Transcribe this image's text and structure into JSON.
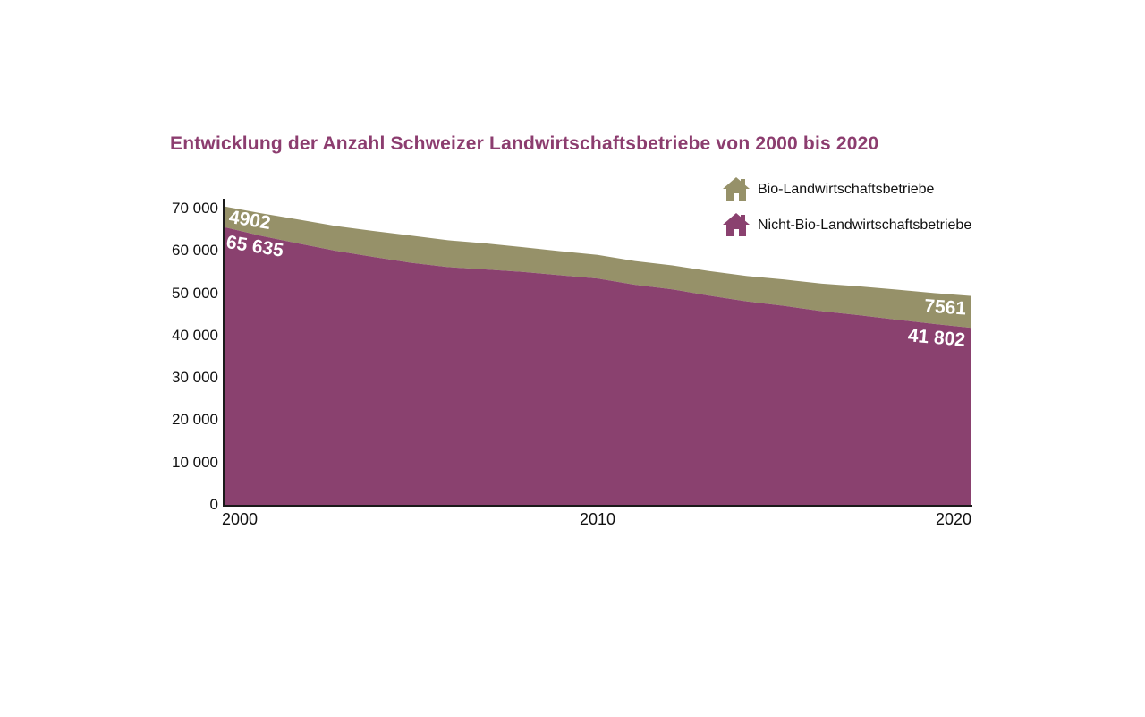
{
  "title": {
    "text": "Entwicklung der Anzahl Schweizer Landwirtschaftsbetriebe von 2000 bis 2020",
    "color": "#8C3D6F"
  },
  "legend": {
    "position": "top-right",
    "items": [
      {
        "label": "Bio-Landwirtschaftsbetriebe",
        "color": "#969169",
        "icon": "house-icon"
      },
      {
        "label": "Nicht-Bio-Landwirtschaftsbetriebe",
        "color": "#8A416F",
        "icon": "house-icon"
      }
    ]
  },
  "chart_data": {
    "type": "area",
    "stacked": true,
    "title": "Entwicklung der Anzahl Schweizer Landwirtschaftsbetriebe von 2000 bis 2020",
    "xlabel": "",
    "ylabel": "",
    "grid": false,
    "x": [
      2000,
      2001,
      2002,
      2003,
      2004,
      2005,
      2006,
      2007,
      2008,
      2009,
      2010,
      2011,
      2012,
      2013,
      2014,
      2015,
      2016,
      2017,
      2018,
      2019,
      2020
    ],
    "series": [
      {
        "name": "Nicht-Bio-Landwirtschaftsbetriebe",
        "color": "#8A416F",
        "values": [
          65635,
          63547,
          61760,
          60014,
          58582,
          57207,
          56171,
          55620,
          55019,
          54242,
          53476,
          52000,
          50915,
          49407,
          48046,
          46988,
          45763,
          44820,
          43752,
          42738,
          41802
        ]
      },
      {
        "name": "Bio-Landwirtschaftsbetriebe",
        "color": "#969169",
        "values": [
          4902,
          5333,
          5661,
          5852,
          6122,
          6420,
          6352,
          6144,
          5875,
          5700,
          5589,
          5600,
          5660,
          5800,
          6000,
          6244,
          6500,
          6800,
          7100,
          7300,
          7561
        ]
      }
    ],
    "ylim": [
      0,
      70000
    ],
    "yticks": [
      {
        "value": 0,
        "label": "0"
      },
      {
        "value": 10000,
        "label": "10 000"
      },
      {
        "value": 20000,
        "label": "20 000"
      },
      {
        "value": 30000,
        "label": "30 000"
      },
      {
        "value": 40000,
        "label": "40 000"
      },
      {
        "value": 50000,
        "label": "50 000"
      },
      {
        "value": 60000,
        "label": "60 000"
      },
      {
        "value": 70000,
        "label": "70 000"
      }
    ],
    "xticks": [
      {
        "value": 2000,
        "label": "2000"
      },
      {
        "value": 2010,
        "label": "2010"
      },
      {
        "value": 2020,
        "label": "2020"
      }
    ],
    "annotations": [
      {
        "text": "4902",
        "series": "Bio-Landwirtschaftsbetriebe",
        "year": 2000
      },
      {
        "text": "65 635",
        "series": "Nicht-Bio-Landwirtschaftsbetriebe",
        "year": 2000
      },
      {
        "text": "7561",
        "series": "Bio-Landwirtschaftsbetriebe",
        "year": 2020
      },
      {
        "text": "41 802",
        "series": "Nicht-Bio-Landwirtschaftsbetriebe",
        "year": 2020
      }
    ],
    "axis_color": "#1a1a1a",
    "background": "#ffffff",
    "label_color": "#ffffff"
  }
}
